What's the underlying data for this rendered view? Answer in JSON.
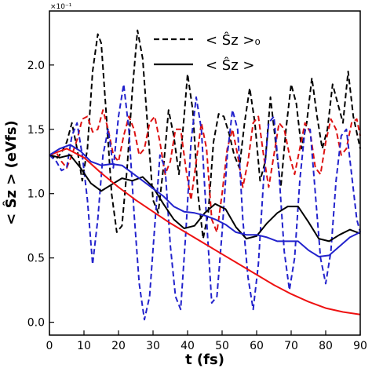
{
  "chart_data": {
    "type": "line",
    "xlabel": "t (fs)",
    "ylabel": "< Ŝz > (eVfs)",
    "offset_text": "×10⁻¹",
    "xlim": [
      0,
      90
    ],
    "ylim": [
      -0.1,
      2.42
    ],
    "xticks": [
      0,
      10,
      20,
      30,
      40,
      50,
      60,
      70,
      80,
      90
    ],
    "yticks": [
      0.0,
      0.5,
      1.0,
      1.5,
      2.0
    ],
    "ytick_labels": [
      "0.0",
      "0.5",
      "1.0",
      "1.5",
      "2.0"
    ],
    "legend": {
      "placement": "top-center",
      "entries": [
        {
          "label": "< Ŝz >₀",
          "style": "dashed"
        },
        {
          "label": "< Ŝz >",
          "style": "solid"
        }
      ]
    },
    "series": [
      {
        "color": "#000000",
        "dash": true,
        "x": [
          0,
          2,
          3.5,
          5,
          6.5,
          8,
          9.5,
          11,
          12.5,
          14,
          15,
          16.5,
          18,
          19.5,
          21,
          22.5,
          24,
          25.5,
          27,
          28.5,
          30,
          31.5,
          33,
          34.5,
          36,
          37.5,
          39,
          40,
          41.5,
          43,
          44.5,
          46,
          47.5,
          49,
          50.5,
          52,
          53.5,
          55,
          56.5,
          58,
          59.5,
          61,
          62.5,
          64,
          65.5,
          67,
          68.5,
          70,
          71.5,
          73,
          74.5,
          76,
          77.5,
          79,
          80.5,
          82,
          83.5,
          85,
          86.5,
          88,
          90
        ],
        "y": [
          1.3,
          1.27,
          1.32,
          1.4,
          1.55,
          1.35,
          1.1,
          1.35,
          1.95,
          2.24,
          2.17,
          1.6,
          1.0,
          0.7,
          0.75,
          1.2,
          1.8,
          2.27,
          2.05,
          1.5,
          0.95,
          0.85,
          1.2,
          1.65,
          1.45,
          1.15,
          1.6,
          1.93,
          1.65,
          1.0,
          0.65,
          0.85,
          1.4,
          1.62,
          1.6,
          1.47,
          1.3,
          1.2,
          1.55,
          1.82,
          1.55,
          1.1,
          1.25,
          1.75,
          1.4,
          1.05,
          1.5,
          1.85,
          1.7,
          1.35,
          1.55,
          1.9,
          1.6,
          1.35,
          1.5,
          1.85,
          1.7,
          1.55,
          1.95,
          1.6,
          1.35
        ]
      },
      {
        "color": "#dd1111",
        "dash": true,
        "x": [
          0,
          2,
          3.5,
          5,
          6.5,
          8,
          9.5,
          11,
          12.5,
          14,
          15.5,
          17,
          18.5,
          20,
          21.5,
          23,
          24.5,
          26,
          27.5,
          29,
          30.5,
          32,
          33.5,
          35,
          36.5,
          38,
          39.5,
          41,
          42.5,
          44,
          45.5,
          47,
          48.5,
          50,
          51.5,
          53,
          54.5,
          56,
          57.5,
          59,
          60.5,
          62,
          63.5,
          65,
          66.5,
          68,
          69.5,
          71,
          72.5,
          74,
          75.5,
          77,
          78.5,
          80,
          81.5,
          83,
          84.5,
          86,
          87.5,
          89,
          90
        ],
        "y": [
          1.3,
          1.32,
          1.25,
          1.2,
          1.3,
          1.42,
          1.58,
          1.6,
          1.48,
          1.5,
          1.65,
          1.5,
          1.3,
          1.25,
          1.45,
          1.6,
          1.5,
          1.3,
          1.35,
          1.55,
          1.6,
          1.4,
          1.15,
          1.25,
          1.5,
          1.5,
          1.2,
          0.95,
          1.25,
          1.55,
          1.35,
          0.8,
          0.7,
          1.0,
          1.35,
          1.5,
          1.3,
          1.05,
          1.25,
          1.55,
          1.6,
          1.3,
          1.05,
          1.3,
          1.55,
          1.5,
          1.3,
          1.15,
          1.35,
          1.55,
          1.48,
          1.2,
          1.15,
          1.4,
          1.58,
          1.5,
          1.3,
          1.35,
          1.55,
          1.58,
          1.45
        ]
      },
      {
        "color": "#2222cc",
        "dash": true,
        "x": [
          0,
          2,
          3.5,
          5,
          6.5,
          8,
          9.5,
          11,
          12.5,
          14,
          15.5,
          17,
          18.5,
          20,
          21.5,
          23,
          24.5,
          26,
          27.5,
          29,
          30.5,
          32,
          33.5,
          35,
          36.5,
          38,
          39.5,
          41,
          42.5,
          44,
          45.5,
          47,
          48.5,
          50,
          51.5,
          53,
          54.5,
          56,
          57.5,
          59,
          60.5,
          62,
          63.5,
          65,
          66.5,
          68,
          69.5,
          71,
          72.5,
          74,
          75.5,
          77,
          78.5,
          80,
          81.5,
          83,
          84.5,
          86,
          87.5,
          89,
          90
        ],
        "y": [
          1.3,
          1.25,
          1.18,
          1.2,
          1.45,
          1.55,
          1.3,
          0.95,
          0.45,
          0.8,
          1.3,
          1.5,
          1.2,
          1.6,
          1.85,
          1.5,
          0.85,
          0.3,
          0.02,
          0.2,
          0.75,
          1.3,
          1.2,
          0.6,
          0.2,
          0.1,
          0.7,
          1.4,
          1.75,
          1.5,
          0.8,
          0.15,
          0.2,
          0.7,
          1.3,
          1.65,
          1.5,
          0.8,
          0.35,
          0.1,
          0.45,
          1.1,
          1.55,
          1.6,
          1.15,
          0.55,
          0.25,
          0.5,
          1.1,
          1.5,
          1.5,
          1.0,
          0.5,
          0.3,
          0.55,
          1.1,
          1.45,
          1.5,
          1.15,
          0.8,
          0.7
        ]
      },
      {
        "color": "#000000",
        "dash": false,
        "x": [
          0,
          3,
          6,
          9,
          12,
          15,
          18,
          21,
          24,
          27,
          30,
          33,
          36,
          39,
          42,
          45,
          48,
          51,
          54,
          57,
          60,
          63,
          66,
          69,
          72,
          75,
          78,
          81,
          84,
          87,
          90
        ],
        "y": [
          1.3,
          1.28,
          1.3,
          1.2,
          1.08,
          1.02,
          1.07,
          1.12,
          1.1,
          1.13,
          1.05,
          0.92,
          0.8,
          0.73,
          0.75,
          0.85,
          0.92,
          0.88,
          0.74,
          0.65,
          0.67,
          0.77,
          0.85,
          0.9,
          0.9,
          0.78,
          0.65,
          0.63,
          0.68,
          0.72,
          0.69
        ]
      },
      {
        "color": "#ee1111",
        "dash": false,
        "x": [
          0,
          5,
          10,
          15,
          20,
          25,
          30,
          35,
          40,
          45,
          50,
          55,
          60,
          65,
          70,
          75,
          80,
          85,
          90
        ],
        "y": [
          1.3,
          1.35,
          1.28,
          1.16,
          1.05,
          0.95,
          0.86,
          0.77,
          0.69,
          0.61,
          0.53,
          0.45,
          0.37,
          0.29,
          0.22,
          0.16,
          0.11,
          0.08,
          0.06
        ]
      },
      {
        "color": "#2222cc",
        "dash": false,
        "x": [
          0,
          3,
          6,
          9,
          12,
          15,
          18,
          21,
          24,
          27,
          30,
          33,
          36,
          39,
          42,
          45,
          48,
          51,
          54,
          57,
          60,
          63,
          66,
          69,
          72,
          75,
          78,
          81,
          84,
          87,
          90
        ],
        "y": [
          1.3,
          1.35,
          1.38,
          1.33,
          1.25,
          1.22,
          1.23,
          1.22,
          1.16,
          1.1,
          1.04,
          0.98,
          0.9,
          0.86,
          0.85,
          0.83,
          0.8,
          0.76,
          0.7,
          0.68,
          0.68,
          0.66,
          0.63,
          0.63,
          0.63,
          0.56,
          0.51,
          0.52,
          0.59,
          0.66,
          0.7
        ]
      }
    ]
  }
}
